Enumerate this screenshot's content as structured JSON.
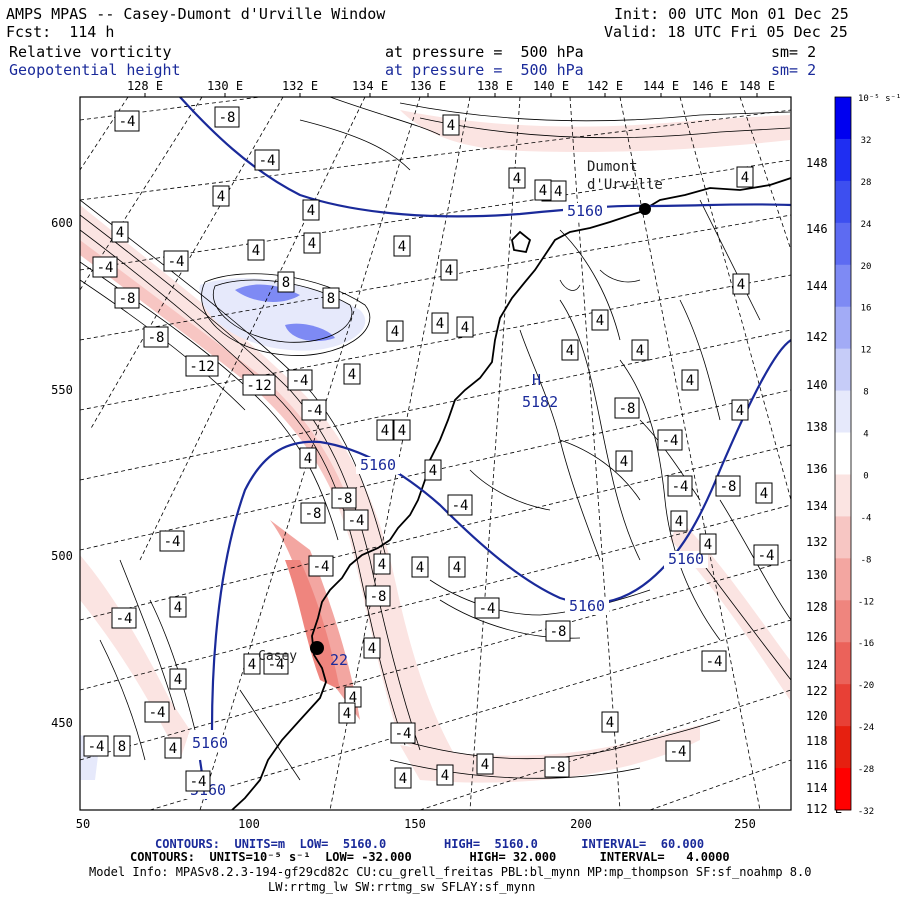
{
  "header": {
    "title": "AMPS MPAS -- Casey-Dumont d'Urville Window",
    "fcst": "Fcst:  114 h",
    "init": "Init: 00 UTC Mon 01 Dec 25",
    "valid": "Valid: 18 UTC Fri 05 Dec 25",
    "field1_name": "Relative vorticity",
    "field1_level": "at pressure =  500 hPa",
    "field1_sm": "sm= 2",
    "field2_name": "Geopotential height",
    "field2_level": "at pressure =  500 hPa",
    "field2_sm": "sm= 2"
  },
  "longitude_labels": [
    "128 E",
    "130 E",
    "132 E",
    "134 E",
    "136 E",
    "138 E",
    "140 E",
    "142 E",
    "144 E",
    "146 E",
    "148 E"
  ],
  "latitude_labels": [
    "148 E",
    "146 E",
    "144 E",
    "142 E",
    "140 E",
    "138 E",
    "136 E",
    "134 E",
    "132 E",
    "130 E",
    "128 E",
    "126 E",
    "124 E",
    "122 E",
    "120 E",
    "118 E",
    "116 E",
    "114 E",
    "112 E"
  ],
  "x_axis_ticks": [
    "50",
    "100",
    "150",
    "200",
    "250"
  ],
  "y_axis_ticks": [
    "600",
    "550",
    "500",
    "450"
  ],
  "colorbar": {
    "unit_label": "10⁻⁵ s⁻¹",
    "ticks": [
      "32",
      "28",
      "24",
      "20",
      "16",
      "12",
      "8",
      "4",
      "0",
      "-4",
      "-8",
      "-12",
      "-16",
      "-20",
      "-24",
      "-28",
      "-32"
    ],
    "colors": [
      "#0000f0",
      "#1f2ef2",
      "#3d4ff0",
      "#5d6bf2",
      "#7e8af4",
      "#a2abf6",
      "#c6ccf8",
      "#e6e9fb",
      "#ffffff",
      "#fbe4e2",
      "#f7c6c3",
      "#f3a6a1",
      "#ef857e",
      "#eb625a",
      "#e84036",
      "#e62010",
      "#ff0000"
    ]
  },
  "places": {
    "station1": "Dumont\nd'Urville",
    "station2": "Casey"
  },
  "height_contour_labels": [
    "5160",
    "5160",
    "5160",
    "5160",
    "5160",
    "5160"
  ],
  "high_marker": {
    "letter": "H",
    "value": "5182"
  },
  "vorticity_labels": [
    "-4",
    "-8",
    "-4",
    "4",
    "4",
    "4",
    "4",
    "-4",
    "4",
    "4",
    "4",
    "4",
    "4",
    "4",
    "-4",
    "-4",
    "-8",
    "8",
    "8",
    "4",
    "4",
    "4",
    "4",
    "-8",
    "-12",
    "-12",
    "-4",
    "4",
    "-4",
    "4",
    "4",
    "4",
    "4",
    "-8",
    "4",
    "-8",
    "-4",
    "4",
    "4",
    "4",
    "-4",
    "4",
    "-8",
    "-4",
    "4",
    "-8",
    "-4",
    "4",
    "-4",
    "-4",
    "4",
    "4",
    "4",
    "-4",
    "4",
    "-4",
    "4",
    "-4",
    "8",
    "4",
    "-4",
    "4",
    "4",
    "4",
    "-8",
    "-4",
    "-4",
    "-4",
    "-8",
    "4",
    "-4",
    "-8",
    "4",
    "4",
    "4",
    "4",
    "4",
    "4",
    "4",
    "-4",
    "-4"
  ],
  "casey_value_label": "22",
  "footer": {
    "line1": "CONTOURS:  UNITS=m  LOW=  5160.0        HIGH=  5160.0      INTERVAL=  60.000",
    "line2": "CONTOURS:  UNITS=10⁻⁵ s⁻¹  LOW= -32.000        HIGH= 32.000      INTERVAL=   4.0000",
    "line3": "Model Info: MPASv8.2.3-194-gf29cd82c CU:cu_grell_freitas PBL:bl_mynn MP:mp_thompson SF:sf_noahmp 8.0",
    "line4": "LW:rrtmg_lw SW:rrtmg_sw SFLAY:sf_mynn"
  }
}
